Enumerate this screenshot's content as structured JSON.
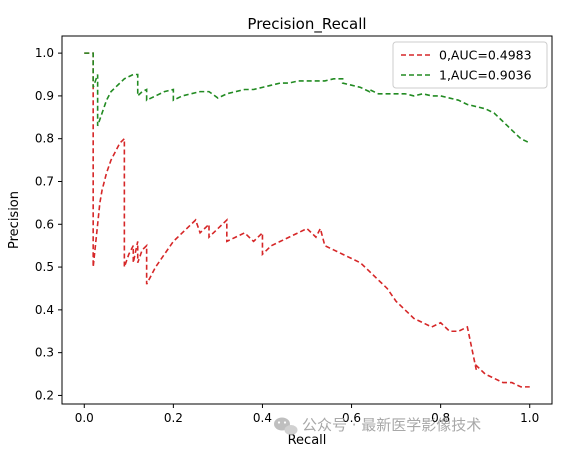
{
  "chart_data": {
    "type": "line",
    "title": "Precision_Recall",
    "xlabel": "Recall",
    "ylabel": "Precision",
    "xlim": [
      -0.05,
      1.05
    ],
    "ylim": [
      0.18,
      1.04
    ],
    "xticks": [
      0.0,
      0.2,
      0.4,
      0.6,
      0.8,
      1.0
    ],
    "xtick_labels": [
      "0.0",
      "0.2",
      "0.4",
      "0.6",
      "0.8",
      "1.0"
    ],
    "yticks": [
      0.2,
      0.3,
      0.4,
      0.5,
      0.6,
      0.7,
      0.8,
      0.9,
      1.0
    ],
    "ytick_labels": [
      "0.2",
      "0.3",
      "0.4",
      "0.5",
      "0.6",
      "0.7",
      "0.8",
      "0.9",
      "1.0"
    ],
    "legend_position": "top-right",
    "series": [
      {
        "name": "0,AUC=0.4983",
        "color": "#d62728",
        "style": "dashed-step",
        "x": [
          0.0,
          0.02,
          0.02,
          0.025,
          0.03,
          0.035,
          0.04,
          0.045,
          0.05,
          0.06,
          0.07,
          0.08,
          0.09,
          0.09,
          0.1,
          0.11,
          0.11,
          0.12,
          0.12,
          0.13,
          0.14,
          0.14,
          0.15,
          0.16,
          0.18,
          0.2,
          0.22,
          0.24,
          0.25,
          0.26,
          0.28,
          0.28,
          0.3,
          0.32,
          0.32,
          0.34,
          0.36,
          0.38,
          0.4,
          0.4,
          0.42,
          0.44,
          0.46,
          0.48,
          0.5,
          0.52,
          0.53,
          0.54,
          0.56,
          0.58,
          0.6,
          0.62,
          0.64,
          0.66,
          0.68,
          0.7,
          0.72,
          0.74,
          0.76,
          0.78,
          0.8,
          0.82,
          0.84,
          0.86,
          0.88,
          0.88,
          0.9,
          0.92,
          0.94,
          0.96,
          0.98,
          0.98,
          1.0
        ],
        "y": [
          1.0,
          1.0,
          0.5,
          0.55,
          0.6,
          0.65,
          0.68,
          0.7,
          0.72,
          0.75,
          0.77,
          0.79,
          0.8,
          0.5,
          0.53,
          0.55,
          0.51,
          0.56,
          0.51,
          0.54,
          0.55,
          0.46,
          0.48,
          0.5,
          0.53,
          0.56,
          0.58,
          0.6,
          0.61,
          0.58,
          0.6,
          0.57,
          0.59,
          0.61,
          0.56,
          0.57,
          0.58,
          0.56,
          0.58,
          0.53,
          0.55,
          0.56,
          0.57,
          0.58,
          0.59,
          0.57,
          0.59,
          0.55,
          0.54,
          0.53,
          0.52,
          0.51,
          0.49,
          0.47,
          0.45,
          0.42,
          0.4,
          0.38,
          0.37,
          0.36,
          0.37,
          0.35,
          0.35,
          0.36,
          0.26,
          0.27,
          0.25,
          0.24,
          0.23,
          0.23,
          0.22,
          0.22,
          0.22
        ]
      },
      {
        "name": "1,AUC=0.9036",
        "color": "#228b22",
        "style": "dashed-step",
        "x": [
          0.0,
          0.02,
          0.02,
          0.03,
          0.03,
          0.04,
          0.05,
          0.06,
          0.07,
          0.08,
          0.09,
          0.1,
          0.11,
          0.12,
          0.12,
          0.13,
          0.14,
          0.14,
          0.15,
          0.16,
          0.18,
          0.2,
          0.2,
          0.22,
          0.24,
          0.26,
          0.28,
          0.3,
          0.32,
          0.34,
          0.36,
          0.38,
          0.4,
          0.42,
          0.44,
          0.46,
          0.48,
          0.5,
          0.52,
          0.54,
          0.56,
          0.58,
          0.58,
          0.6,
          0.62,
          0.64,
          0.64,
          0.66,
          0.68,
          0.7,
          0.72,
          0.74,
          0.76,
          0.78,
          0.8,
          0.82,
          0.84,
          0.86,
          0.88,
          0.9,
          0.92,
          0.93,
          0.94,
          0.95,
          0.96,
          0.97,
          0.98,
          0.99,
          1.0
        ],
        "y": [
          1.0,
          1.0,
          0.92,
          0.95,
          0.83,
          0.86,
          0.89,
          0.91,
          0.92,
          0.93,
          0.94,
          0.945,
          0.95,
          0.95,
          0.9,
          0.91,
          0.915,
          0.89,
          0.895,
          0.9,
          0.91,
          0.915,
          0.89,
          0.9,
          0.905,
          0.91,
          0.91,
          0.895,
          0.905,
          0.91,
          0.915,
          0.915,
          0.92,
          0.925,
          0.93,
          0.93,
          0.935,
          0.935,
          0.935,
          0.935,
          0.94,
          0.94,
          0.93,
          0.925,
          0.92,
          0.91,
          0.915,
          0.905,
          0.905,
          0.905,
          0.905,
          0.9,
          0.905,
          0.9,
          0.9,
          0.895,
          0.89,
          0.88,
          0.875,
          0.87,
          0.86,
          0.85,
          0.84,
          0.83,
          0.82,
          0.81,
          0.8,
          0.795,
          0.79
        ]
      }
    ]
  },
  "watermark": {
    "text": "公众号 · 最新医学影像技术",
    "icon": "wechat-icon"
  }
}
